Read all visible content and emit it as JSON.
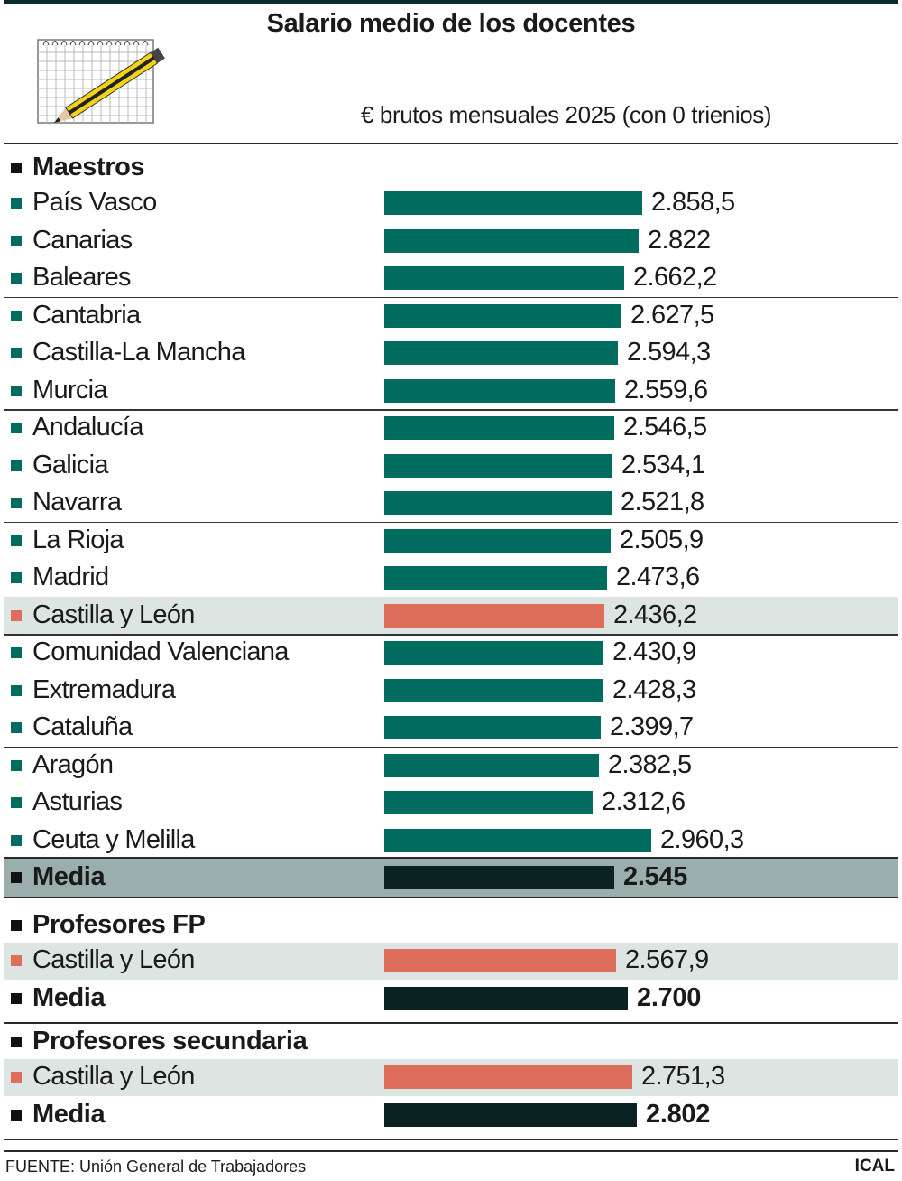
{
  "title": "Salario medio de los docentes",
  "subtitle": "€ brutos mensuales 2025 (con 0 trienios)",
  "source": "FUENTE: Unión General de Trabajadores",
  "brand": "ICAL",
  "colors": {
    "teal": "#006b5f",
    "highlight": "#dd6e5c",
    "average": "#0b2222",
    "highlight_band": "#dde5e3",
    "average_band": "#9aaeae"
  },
  "chart_data": {
    "type": "bar",
    "orientation": "horizontal",
    "title": "Salario medio de los docentes",
    "unit": "€ brutos mensuales 2025 (con 0 trienios)",
    "groups": [
      {
        "name": "Maestros",
        "rows": [
          {
            "label": "País Vasco",
            "value": 2858.5,
            "display": "2.858,5",
            "kind": "normal"
          },
          {
            "label": "Canarias",
            "value": 2822,
            "display": "2.822",
            "kind": "normal"
          },
          {
            "label": "Baleares",
            "value": 2662.2,
            "display": "2.662,2",
            "kind": "normal"
          },
          {
            "label": "Cantabria",
            "value": 2627.5,
            "display": "2.627,5",
            "kind": "normal"
          },
          {
            "label": "Castilla-La Mancha",
            "value": 2594.3,
            "display": "2.594,3",
            "kind": "normal"
          },
          {
            "label": "Murcia",
            "value": 2559.6,
            "display": "2.559,6",
            "kind": "normal"
          },
          {
            "label": "Andalucía",
            "value": 2546.5,
            "display": "2.546,5",
            "kind": "normal"
          },
          {
            "label": "Galicia",
            "value": 2534.1,
            "display": "2.534,1",
            "kind": "normal"
          },
          {
            "label": "Navarra",
            "value": 2521.8,
            "display": "2.521,8",
            "kind": "normal"
          },
          {
            "label": "La Rioja",
            "value": 2505.9,
            "display": "2.505,9",
            "kind": "normal"
          },
          {
            "label": "Madrid",
            "value": 2473.6,
            "display": "2.473,6",
            "kind": "normal"
          },
          {
            "label": "Castilla y León",
            "value": 2436.2,
            "display": "2.436,2",
            "kind": "highlight"
          },
          {
            "label": "Comunidad Valenciana",
            "value": 2430.9,
            "display": "2.430,9",
            "kind": "normal"
          },
          {
            "label": "Extremadura",
            "value": 2428.3,
            "display": "2.428,3",
            "kind": "normal"
          },
          {
            "label": "Cataluña",
            "value": 2399.7,
            "display": "2.399,7",
            "kind": "normal"
          },
          {
            "label": "Aragón",
            "value": 2382.5,
            "display": "2.382,5",
            "kind": "normal"
          },
          {
            "label": "Asturias",
            "value": 2312.6,
            "display": "2.312,6",
            "kind": "normal"
          },
          {
            "label": "Ceuta y Melilla",
            "value": 2960.3,
            "display": "2.960,3",
            "kind": "normal"
          },
          {
            "label": "Media",
            "value": 2545,
            "display": "2.545",
            "kind": "average"
          }
        ]
      },
      {
        "name": "Profesores FP",
        "rows": [
          {
            "label": "Castilla y León",
            "value": 2567.9,
            "display": "2.567,9",
            "kind": "highlight"
          },
          {
            "label": "Media",
            "value": 2700,
            "display": "2.700",
            "kind": "average"
          }
        ]
      },
      {
        "name": "Profesores secundaria",
        "rows": [
          {
            "label": "Castilla y León",
            "value": 2751.3,
            "display": "2.751,3",
            "kind": "highlight"
          },
          {
            "label": "Media",
            "value": 2802,
            "display": "2.802",
            "kind": "average"
          }
        ]
      }
    ]
  }
}
